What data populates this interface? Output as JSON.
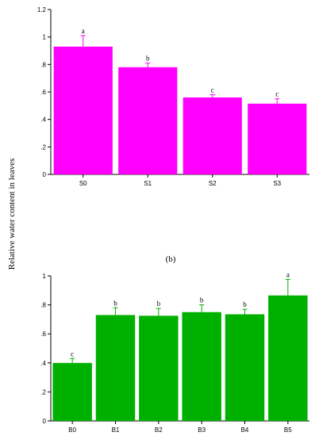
{
  "ylabel": "Relative water content in leaves",
  "chart_data": [
    {
      "type": "bar",
      "panel_label": "",
      "categories": [
        "S0",
        "S1",
        "S2",
        "S3"
      ],
      "values": [
        0.93,
        0.78,
        0.56,
        0.515
      ],
      "errors": [
        0.08,
        0.03,
        0.02,
        0.035
      ],
      "significance": [
        "a",
        "b",
        "c",
        "c"
      ],
      "ylim": [
        0,
        1.2
      ],
      "yticks": [
        0,
        0.2,
        0.4,
        0.6,
        0.8,
        1,
        1.2
      ],
      "ytick_labels": [
        "0",
        ".2",
        ".4",
        ".6",
        ".8",
        "1",
        "1.2"
      ],
      "bar_color": "#ff00ff",
      "grid": false,
      "title": "",
      "xlabel": ""
    },
    {
      "type": "bar",
      "panel_label": "(b)",
      "categories": [
        "B0",
        "B1",
        "B2",
        "B3",
        "B4",
        "B5"
      ],
      "values": [
        0.4,
        0.73,
        0.725,
        0.75,
        0.735,
        0.865
      ],
      "errors": [
        0.03,
        0.05,
        0.05,
        0.05,
        0.035,
        0.11
      ],
      "significance": [
        "c",
        "b",
        "b",
        "b",
        "b",
        "a"
      ],
      "ylim": [
        0,
        1
      ],
      "yticks": [
        0,
        0.2,
        0.4,
        0.6,
        0.8,
        1
      ],
      "ytick_labels": [
        "0",
        ".2",
        ".4",
        ".6",
        ".8",
        "1"
      ],
      "bar_color": "#00b000",
      "grid": false,
      "title": "",
      "xlabel": ""
    }
  ]
}
